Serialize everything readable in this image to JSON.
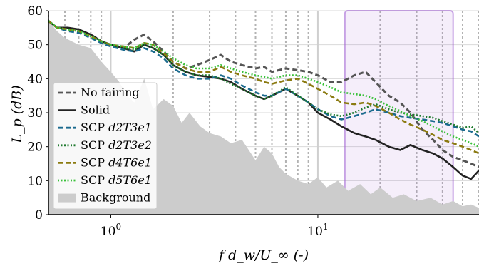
{
  "chart_data": {
    "type": "line",
    "title": "",
    "xlabel": "f d_w/U_∞ (-)",
    "ylabel": "L_p (dB)",
    "xscale": "log",
    "xlim": [
      0.5,
      60
    ],
    "ylim": [
      0,
      60
    ],
    "xticks": [
      {
        "value": 1,
        "label": "10",
        "exp": "0"
      },
      {
        "value": 10,
        "label": "10",
        "exp": "1"
      }
    ],
    "yticks": [
      0,
      10,
      20,
      30,
      40,
      50,
      60
    ],
    "grid": true,
    "legend_position": "left-center",
    "highlight": {
      "x_range": [
        13.5,
        45
      ],
      "color": "#9b59d0"
    },
    "series": [
      {
        "name": "No fairing",
        "italic_suffix": "",
        "style": "dashed",
        "color": "#555555",
        "x": [
          0.5,
          0.55,
          0.62,
          0.7,
          0.8,
          0.9,
          1.0,
          1.15,
          1.3,
          1.45,
          1.6,
          1.8,
          2.0,
          2.3,
          2.6,
          3.0,
          3.4,
          3.8,
          4.3,
          5.0,
          5.5,
          6.0,
          7.0,
          8.0,
          9.0,
          10.0,
          11.5,
          13.0,
          15.0,
          17.0,
          19.0,
          22.0,
          25.0,
          28.0,
          32.0,
          36.0,
          40.0,
          45.0,
          50.0,
          55.0,
          60.0
        ],
        "y": [
          57,
          55,
          54.5,
          54,
          53,
          51,
          50,
          49,
          51.5,
          53,
          51,
          48,
          45,
          43,
          44,
          45.5,
          47,
          45,
          44,
          43,
          43.5,
          42,
          43,
          42.5,
          42,
          41,
          39,
          39,
          41,
          42,
          39,
          35,
          33,
          30,
          25,
          22,
          19,
          17,
          16,
          15,
          14
        ]
      },
      {
        "name": "Solid",
        "italic_suffix": "",
        "style": "solid",
        "color": "#222222",
        "x": [
          0.5,
          0.55,
          0.62,
          0.7,
          0.8,
          0.9,
          1.0,
          1.15,
          1.3,
          1.45,
          1.6,
          1.8,
          2.0,
          2.3,
          2.6,
          3.0,
          3.4,
          3.8,
          4.3,
          5.0,
          5.5,
          6.0,
          7.0,
          8.0,
          9.0,
          10.0,
          11.5,
          13.0,
          15.0,
          17.0,
          19.0,
          22.0,
          25.0,
          28.0,
          32.0,
          36.0,
          40.0,
          45.0,
          50.0,
          55.0,
          60.0
        ],
        "y": [
          57,
          55,
          55,
          54.5,
          53,
          51,
          50,
          49,
          48,
          50,
          49,
          47,
          44,
          42,
          41,
          40.5,
          40,
          39,
          37,
          35,
          34,
          35,
          37,
          35,
          33,
          30,
          28,
          26,
          24,
          23,
          22,
          20,
          19,
          20.5,
          19,
          18,
          16.5,
          14,
          11.5,
          10.5,
          13
        ]
      },
      {
        "name": "SCP ",
        "italic_suffix": "d2T3e1",
        "style": "dashed",
        "color": "#1a6a8e",
        "x": [
          0.5,
          0.55,
          0.62,
          0.7,
          0.8,
          0.9,
          1.0,
          1.15,
          1.3,
          1.45,
          1.6,
          1.8,
          2.0,
          2.3,
          2.6,
          3.0,
          3.4,
          3.8,
          4.3,
          5.0,
          5.5,
          6.0,
          7.0,
          8.0,
          9.0,
          10.0,
          11.5,
          13.0,
          15.0,
          17.0,
          19.0,
          22.0,
          25.0,
          28.0,
          32.0,
          36.0,
          40.0,
          45.0,
          50.0,
          55.0,
          60.0
        ],
        "y": [
          57,
          55,
          54,
          53.5,
          52,
          50.5,
          49.5,
          48.5,
          48,
          49,
          48,
          46,
          43,
          41,
          40,
          40,
          41,
          40,
          38,
          36,
          35,
          35,
          37,
          35,
          33,
          31,
          29,
          28,
          29,
          30,
          31,
          30,
          29,
          28.5,
          28,
          27.5,
          27,
          26,
          25,
          24.5,
          23
        ]
      },
      {
        "name": "SCP ",
        "italic_suffix": "d2T3e2",
        "style": "dotted",
        "color": "#1e7a2e",
        "x": [
          0.5,
          0.55,
          0.62,
          0.7,
          0.8,
          0.9,
          1.0,
          1.15,
          1.3,
          1.45,
          1.6,
          1.8,
          2.0,
          2.3,
          2.6,
          3.0,
          3.4,
          3.8,
          4.3,
          5.0,
          5.5,
          6.0,
          7.0,
          8.0,
          9.0,
          10.0,
          11.5,
          13.0,
          15.0,
          17.0,
          19.0,
          22.0,
          25.0,
          28.0,
          32.0,
          36.0,
          40.0,
          45.0,
          50.0,
          55.0,
          60.0
        ],
        "y": [
          57,
          55,
          54.5,
          54,
          52.5,
          51,
          50,
          49,
          48.5,
          50,
          49,
          47,
          44,
          42,
          41,
          41,
          40,
          38.5,
          37,
          35,
          34,
          35,
          37.5,
          35,
          33,
          31,
          29.5,
          29,
          30,
          31.5,
          32.5,
          31,
          30,
          29.5,
          29,
          28.5,
          27.5,
          26.5,
          25.5,
          26,
          24
        ]
      },
      {
        "name": "SCP ",
        "italic_suffix": "d4T6e1",
        "style": "dashed",
        "color": "#8b7a10",
        "x": [
          0.5,
          0.55,
          0.62,
          0.7,
          0.8,
          0.9,
          1.0,
          1.15,
          1.3,
          1.45,
          1.6,
          1.8,
          2.0,
          2.3,
          2.6,
          3.0,
          3.4,
          3.8,
          4.3,
          5.0,
          5.5,
          6.0,
          7.0,
          8.0,
          9.0,
          10.0,
          11.5,
          13.0,
          15.0,
          17.0,
          19.0,
          22.0,
          25.0,
          28.0,
          32.0,
          36.0,
          40.0,
          45.0,
          50.0,
          55.0,
          60.0
        ],
        "y": [
          57,
          55,
          54.5,
          54,
          52.5,
          51,
          50,
          49.5,
          49,
          50.5,
          50,
          47.5,
          45,
          43,
          42,
          42,
          43.5,
          42,
          41,
          40,
          39,
          38.5,
          39.5,
          40,
          38.5,
          37,
          35,
          33,
          32.5,
          33,
          32,
          30,
          28,
          26.5,
          25,
          23.5,
          22,
          21,
          20,
          19,
          18
        ]
      },
      {
        "name": "SCP ",
        "italic_suffix": "d5T6e1",
        "style": "dotted",
        "color": "#3ac13a",
        "x": [
          0.5,
          0.55,
          0.62,
          0.7,
          0.8,
          0.9,
          1.0,
          1.15,
          1.3,
          1.45,
          1.6,
          1.8,
          2.0,
          2.3,
          2.6,
          3.0,
          3.4,
          3.8,
          4.3,
          5.0,
          5.5,
          6.0,
          7.0,
          8.0,
          9.0,
          10.0,
          11.5,
          13.0,
          15.0,
          17.0,
          19.0,
          22.0,
          25.0,
          28.0,
          32.0,
          36.0,
          40.0,
          45.0,
          50.0,
          55.0,
          60.0
        ],
        "y": [
          57,
          55,
          54.5,
          54,
          52.5,
          51,
          50,
          49.5,
          49,
          50.5,
          50,
          48,
          46,
          44,
          43,
          43,
          44,
          43,
          42,
          41,
          40.5,
          40,
          41,
          41,
          40,
          39,
          37.5,
          36,
          35.5,
          35,
          34,
          32,
          30.5,
          29,
          27.5,
          26,
          24.5,
          23,
          22,
          21,
          20
        ]
      },
      {
        "name": "Background",
        "italic_suffix": "",
        "style": "area",
        "color": "#cccccc",
        "x": [
          0.5,
          0.55,
          0.6,
          0.7,
          0.8,
          0.9,
          1.0,
          1.1,
          1.2,
          1.3,
          1.45,
          1.6,
          1.8,
          2.0,
          2.2,
          2.4,
          2.7,
          3.0,
          3.4,
          3.8,
          4.3,
          5.0,
          5.5,
          6.0,
          6.5,
          7.0,
          8.0,
          9.0,
          10.0,
          11.0,
          12.5,
          14.0,
          16.0,
          18.0,
          20.0,
          23.0,
          26.0,
          30.0,
          35.0,
          40.0,
          45.0,
          50.0,
          55.0,
          60.0
        ],
        "y": [
          57,
          54,
          52,
          50,
          49,
          45,
          42,
          39,
          35,
          33,
          40,
          31,
          34,
          32,
          27,
          30,
          26,
          24,
          23,
          21,
          22,
          16,
          20,
          18,
          14,
          12,
          10,
          9,
          11,
          8,
          10,
          7,
          9,
          6,
          8,
          5,
          6,
          4,
          5,
          3,
          4,
          2.5,
          3,
          2
        ]
      }
    ]
  }
}
